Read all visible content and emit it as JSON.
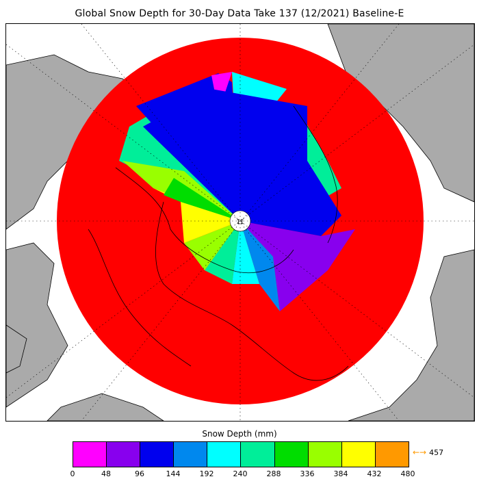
{
  "title": "Global Snow Depth for 30-Day Data Take 137 (12/2021) Baseline-E",
  "legend": {
    "label": "Snow Depth (mm)",
    "colors": [
      "#ff00ff",
      "#8800ee",
      "#0000ee",
      "#0088ee",
      "#00ffff",
      "#00ee99",
      "#00dd00",
      "#99ff00",
      "#ffff00",
      "#ff9900"
    ],
    "ticks": [
      "0",
      "48",
      "96",
      "144",
      "192",
      "240",
      "288",
      "336",
      "384",
      "432",
      "480"
    ],
    "overflow_label": "457",
    "overflow_arrow": "←→"
  },
  "colors": {
    "ocean": "#ffffff",
    "land": "#aaaaaa",
    "no_data": "#ff0000",
    "pole_hole": "#ffffff",
    "grid": "#000000"
  }
}
